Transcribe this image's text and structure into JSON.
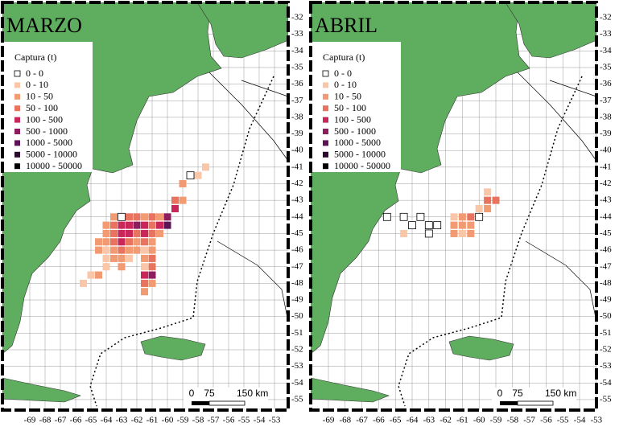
{
  "legend": {
    "title": "Captura (t)",
    "items": [
      "0 - 0",
      "0 - 10",
      "10 - 50",
      "50 - 100",
      "100 - 500",
      "500 - 1000",
      "1000 - 5000",
      "5000 - 10000",
      "10000 - 50000"
    ],
    "colors": [
      "#ffffff",
      "#f9c7a8",
      "#f29a72",
      "#e8735f",
      "#c9265a",
      "#8e1d5e",
      "#5b1456",
      "#2a0b2e",
      "#000000"
    ]
  },
  "xticks": [
    -69,
    -68,
    -67,
    -66,
    -65,
    -64,
    -63,
    -62,
    -61,
    -60,
    -59,
    -58,
    -57,
    -56,
    -55,
    -54,
    -53
  ],
  "yticks": [
    -32,
    -33,
    -34,
    -35,
    -36,
    -37,
    -38,
    -39,
    -40,
    -41,
    -42,
    -43,
    -44,
    -45,
    -46,
    -47,
    -48,
    -49,
    -50,
    -51,
    -52,
    -53,
    -54,
    -55
  ],
  "scale": [
    "0",
    "75",
    "150 km"
  ],
  "panels": [
    {
      "title": "MARZO",
      "cells": [
        [
          -58.5,
          -41.5,
          0
        ],
        [
          -58,
          -41.5,
          1
        ],
        [
          -57.5,
          -41,
          1
        ],
        [
          -59,
          -42,
          2
        ],
        [
          -59.5,
          -43,
          3
        ],
        [
          -59.5,
          -43.5,
          4
        ],
        [
          -59,
          -43,
          2
        ],
        [
          -63.5,
          -44,
          2
        ],
        [
          -63,
          -44,
          0
        ],
        [
          -62.5,
          -44,
          3
        ],
        [
          -62,
          -44,
          3
        ],
        [
          -61.5,
          -44,
          2
        ],
        [
          -61,
          -44,
          3
        ],
        [
          -60.5,
          -44,
          2
        ],
        [
          -60,
          -44,
          5
        ],
        [
          -60,
          -44.5,
          6
        ],
        [
          -64,
          -44.5,
          2
        ],
        [
          -63.5,
          -44.5,
          3
        ],
        [
          -63,
          -44.5,
          4
        ],
        [
          -62.5,
          -44.5,
          4
        ],
        [
          -62,
          -44.5,
          5
        ],
        [
          -61.5,
          -44.5,
          4
        ],
        [
          -61,
          -44.5,
          3
        ],
        [
          -60.5,
          -44.5,
          4
        ],
        [
          -64,
          -45,
          2
        ],
        [
          -63.5,
          -45,
          3
        ],
        [
          -63,
          -45,
          4
        ],
        [
          -62.5,
          -45,
          4
        ],
        [
          -62,
          -45,
          3
        ],
        [
          -61.5,
          -45,
          4
        ],
        [
          -61,
          -45,
          3
        ],
        [
          -60.5,
          -45,
          2
        ],
        [
          -64.5,
          -45.5,
          2
        ],
        [
          -64,
          -45.5,
          2
        ],
        [
          -63.5,
          -45.5,
          3
        ],
        [
          -63,
          -45.5,
          4
        ],
        [
          -62.5,
          -45.5,
          3
        ],
        [
          -62,
          -45.5,
          2
        ],
        [
          -61.5,
          -45.5,
          3
        ],
        [
          -61,
          -45.5,
          2
        ],
        [
          -64.5,
          -46,
          2
        ],
        [
          -64,
          -46,
          1
        ],
        [
          -63.5,
          -46,
          2
        ],
        [
          -63,
          -46,
          3
        ],
        [
          -62.5,
          -46,
          2
        ],
        [
          -62,
          -46,
          2
        ],
        [
          -61.5,
          -46,
          1
        ],
        [
          -61,
          -46,
          2
        ],
        [
          -64,
          -46.5,
          1
        ],
        [
          -63.5,
          -46.5,
          2
        ],
        [
          -63,
          -46.5,
          2
        ],
        [
          -62.5,
          -46.5,
          1
        ],
        [
          -61.5,
          -46.5,
          2
        ],
        [
          -61,
          -46.5,
          3
        ],
        [
          -64,
          -47,
          1
        ],
        [
          -63,
          -47,
          2
        ],
        [
          -61.5,
          -47,
          1
        ],
        [
          -61,
          -47,
          3
        ],
        [
          -65,
          -47.5,
          1
        ],
        [
          -64.5,
          -47.5,
          2
        ],
        [
          -61.5,
          -47.5,
          4
        ],
        [
          -61,
          -47.5,
          5
        ],
        [
          -65.5,
          -48,
          1
        ],
        [
          -61.5,
          -48,
          3
        ],
        [
          -61,
          -48,
          2
        ],
        [
          -61.5,
          -48.5,
          2
        ]
      ]
    },
    {
      "title": "ABRIL",
      "cells": [
        [
          -65.5,
          -44,
          0
        ],
        [
          -64.5,
          -44,
          0
        ],
        [
          -64,
          -44.5,
          0
        ],
        [
          -63.5,
          -44,
          0
        ],
        [
          -63,
          -44.5,
          0
        ],
        [
          -62.5,
          -44.5,
          0
        ],
        [
          -63,
          -45,
          0
        ],
        [
          -64.5,
          -45,
          1
        ],
        [
          -61.5,
          -44,
          1
        ],
        [
          -61.5,
          -44.5,
          2
        ],
        [
          -61,
          -44,
          2
        ],
        [
          -61,
          -44.5,
          2
        ],
        [
          -60.5,
          -44,
          3
        ],
        [
          -60.5,
          -44.5,
          2
        ],
        [
          -61,
          -45,
          1
        ],
        [
          -60,
          -44,
          0
        ],
        [
          -59.5,
          -43.5,
          2
        ],
        [
          -59.5,
          -43,
          3
        ],
        [
          -59,
          -43,
          3
        ],
        [
          -59.5,
          -42.5,
          1
        ],
        [
          -60,
          -43.5,
          1
        ],
        [
          -60.5,
          -45,
          2
        ],
        [
          -61.5,
          -45,
          2
        ]
      ]
    }
  ]
}
